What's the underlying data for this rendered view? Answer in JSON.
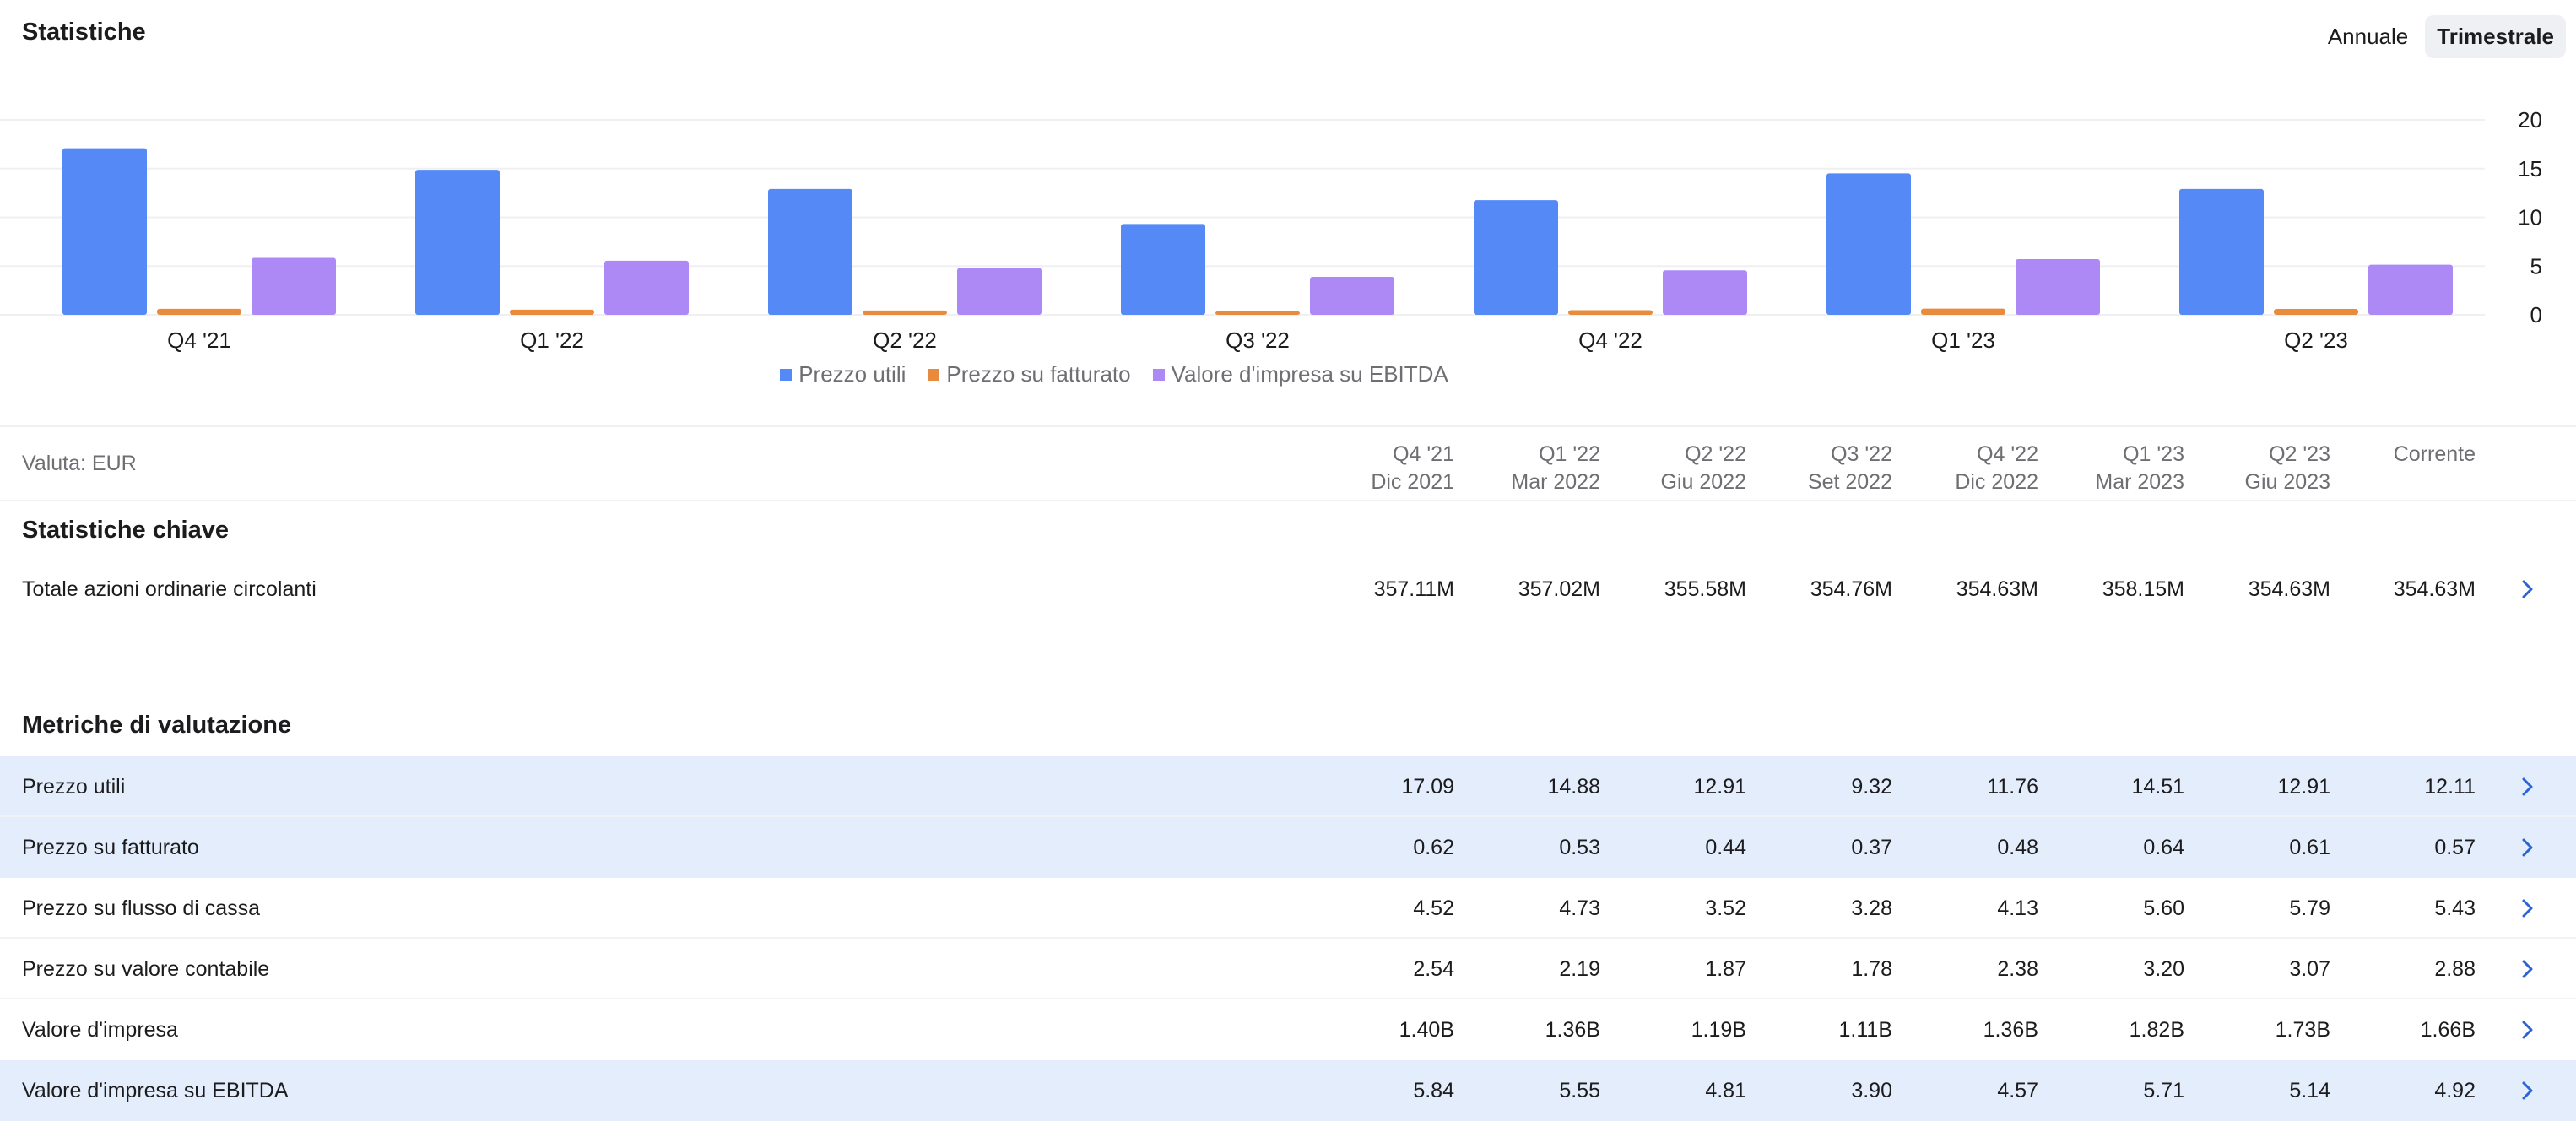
{
  "header": {
    "title": "Statistiche"
  },
  "period_toggle": {
    "annual_label": "Annuale",
    "quarterly_label": "Trimestrale"
  },
  "colors": {
    "series1": "#5589f5",
    "series2": "#e98b3d",
    "series3": "#ac89f5"
  },
  "chart_data": {
    "type": "bar",
    "categories": [
      "Q4 '21",
      "Q1 '22",
      "Q2 '22",
      "Q3 '22",
      "Q4 '22",
      "Q1 '23",
      "Q2 '23"
    ],
    "series": [
      {
        "name": "Prezzo utili",
        "values": [
          17.09,
          14.88,
          12.91,
          9.32,
          11.76,
          14.51,
          12.91
        ]
      },
      {
        "name": "Prezzo su fatturato",
        "values": [
          0.62,
          0.53,
          0.44,
          0.37,
          0.48,
          0.64,
          0.61
        ]
      },
      {
        "name": "Valore d'impresa su EBITDA",
        "values": [
          5.84,
          5.55,
          4.81,
          3.9,
          4.57,
          5.71,
          5.14
        ]
      }
    ],
    "yticks": [
      "0",
      "5",
      "10",
      "15",
      "20"
    ],
    "ylim": [
      0,
      20
    ],
    "yaxis_side": "right",
    "grid": true,
    "legend_position": "bottom"
  },
  "table": {
    "currency_label": "Valuta: EUR",
    "columns": [
      {
        "period": "Q4 '21",
        "date": "Dic 2021"
      },
      {
        "period": "Q1 '22",
        "date": "Mar 2022"
      },
      {
        "period": "Q2 '22",
        "date": "Giu 2022"
      },
      {
        "period": "Q3 '22",
        "date": "Set 2022"
      },
      {
        "period": "Q4 '22",
        "date": "Dic 2022"
      },
      {
        "period": "Q1 '23",
        "date": "Mar 2023"
      },
      {
        "period": "Q2 '23",
        "date": "Giu 2023"
      },
      {
        "period": "Corrente",
        "date": ""
      }
    ]
  },
  "key_stats": {
    "title": "Statistiche chiave",
    "rows": [
      {
        "label": "Totale azioni ordinarie circolanti",
        "values": [
          "357.11M",
          "357.02M",
          "355.58M",
          "354.76M",
          "354.63M",
          "358.15M",
          "354.63M",
          "354.63M"
        ]
      }
    ]
  },
  "valuation": {
    "title": "Metriche di valutazione",
    "rows": [
      {
        "label": "Prezzo utili",
        "values": [
          "17.09",
          "14.88",
          "12.91",
          "9.32",
          "11.76",
          "14.51",
          "12.91",
          "12.11"
        ]
      },
      {
        "label": "Prezzo su fatturato",
        "values": [
          "0.62",
          "0.53",
          "0.44",
          "0.37",
          "0.48",
          "0.64",
          "0.61",
          "0.57"
        ]
      },
      {
        "label": "Prezzo su flusso di cassa",
        "values": [
          "4.52",
          "4.73",
          "3.52",
          "3.28",
          "4.13",
          "5.60",
          "5.79",
          "5.43"
        ]
      },
      {
        "label": "Prezzo su valore contabile",
        "values": [
          "2.54",
          "2.19",
          "1.87",
          "1.78",
          "2.38",
          "3.20",
          "3.07",
          "2.88"
        ]
      },
      {
        "label": "Valore d'impresa",
        "values": [
          "1.40B",
          "1.36B",
          "1.19B",
          "1.11B",
          "1.36B",
          "1.82B",
          "1.73B",
          "1.66B"
        ]
      },
      {
        "label": "Valore d'impresa su EBITDA",
        "values": [
          "5.84",
          "5.55",
          "4.81",
          "3.90",
          "4.57",
          "5.71",
          "5.14",
          "4.92"
        ]
      }
    ]
  }
}
